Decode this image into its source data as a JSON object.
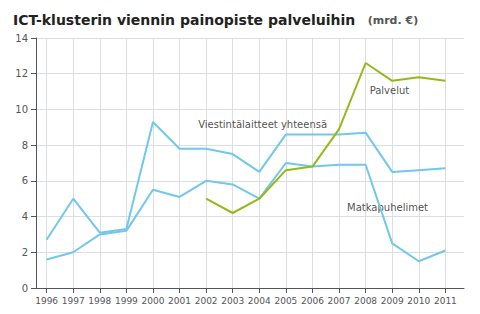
{
  "chart_data": {
    "type": "line",
    "title": "ICT-klusterin viennin painopiste palveluihin",
    "subtitle": "(mrd. €)",
    "series": [
      {
        "color": "#72c8e8",
        "x": [
          1996,
          1997,
          1998,
          1999,
          2000,
          2001,
          2002,
          2003,
          2004,
          2005,
          2006,
          2007,
          2008,
          2009,
          2010,
          2011
        ],
        "values": [
          2.7,
          5.0,
          3.1,
          3.3,
          9.3,
          7.8,
          7.8,
          7.5,
          6.5,
          8.6,
          8.6,
          8.6,
          8.7,
          6.5,
          6.6,
          6.7
        ]
      },
      {
        "color": "#72c8e8",
        "x": [
          1996,
          1997,
          1998,
          1999,
          2000,
          2001,
          2002,
          2003,
          2004,
          2005,
          2006,
          2007,
          2008,
          2009,
          2010,
          2011
        ],
        "values": [
          1.6,
          2.0,
          3.0,
          3.2,
          5.5,
          5.1,
          6.0,
          5.8,
          5.0,
          7.0,
          6.8,
          6.9,
          6.9,
          2.5,
          1.5,
          2.1
        ]
      },
      {
        "color": "#96b917",
        "x": [
          2002,
          2003,
          2004,
          2005,
          2006,
          2007,
          2008,
          2009,
          2010,
          2011
        ],
        "values": [
          5.0,
          4.2,
          5.0,
          6.6,
          6.8,
          8.9,
          12.6,
          11.6,
          11.8,
          11.6
        ]
      }
    ],
    "xlim": [
      1995.6,
      2011.7
    ],
    "xticks": [
      1996,
      1997,
      1998,
      1999,
      2000,
      2001,
      2002,
      2003,
      2004,
      2005,
      2006,
      2007,
      2008,
      2009,
      2010,
      2011
    ],
    "ylim": [
      0,
      14
    ],
    "yticks": [
      0,
      2,
      4,
      6,
      8,
      10,
      12,
      14
    ],
    "grid": true,
    "annotations": [
      {
        "text": "Viestintälaitteet yhteensä",
        "x": 2001.7,
        "y": 8.85
      },
      {
        "text": "Matkapuhelimet",
        "x": 2007.3,
        "y": 4.8
      },
      {
        "text": "Palvelut",
        "x": 2008.15,
        "y": 11.35
      }
    ]
  }
}
